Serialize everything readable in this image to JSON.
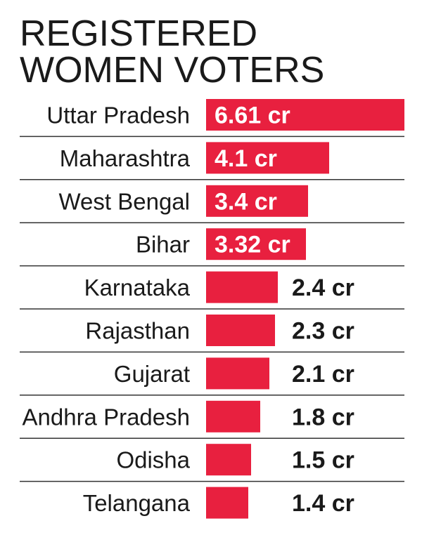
{
  "chart_data": {
    "type": "bar",
    "orientation": "horizontal",
    "title_lines": [
      "REGISTERED",
      "WOMEN VOTERS"
    ],
    "unit": "cr",
    "categories": [
      "Uttar Pradesh",
      "Maharashtra",
      "West Bengal",
      "Bihar",
      "Karnataka",
      "Rajasthan",
      "Gujarat",
      "Andhra Pradesh",
      "Odisha",
      "Telangana"
    ],
    "values": [
      6.61,
      4.1,
      3.4,
      3.32,
      2.4,
      2.3,
      2.1,
      1.8,
      1.5,
      1.4
    ],
    "value_labels": [
      "6.61 cr",
      "4.1 cr",
      "3.4 cr",
      "3.32 cr",
      "2.4 cr",
      "2.3 cr",
      "2.1 cr",
      "1.8 cr",
      "1.5 cr",
      "1.4 cr"
    ],
    "bar_color": "#e8203f",
    "label_inside_color": "#ffffff",
    "label_outside_color": "#1a1a1a",
    "divider_color": "#333333"
  }
}
